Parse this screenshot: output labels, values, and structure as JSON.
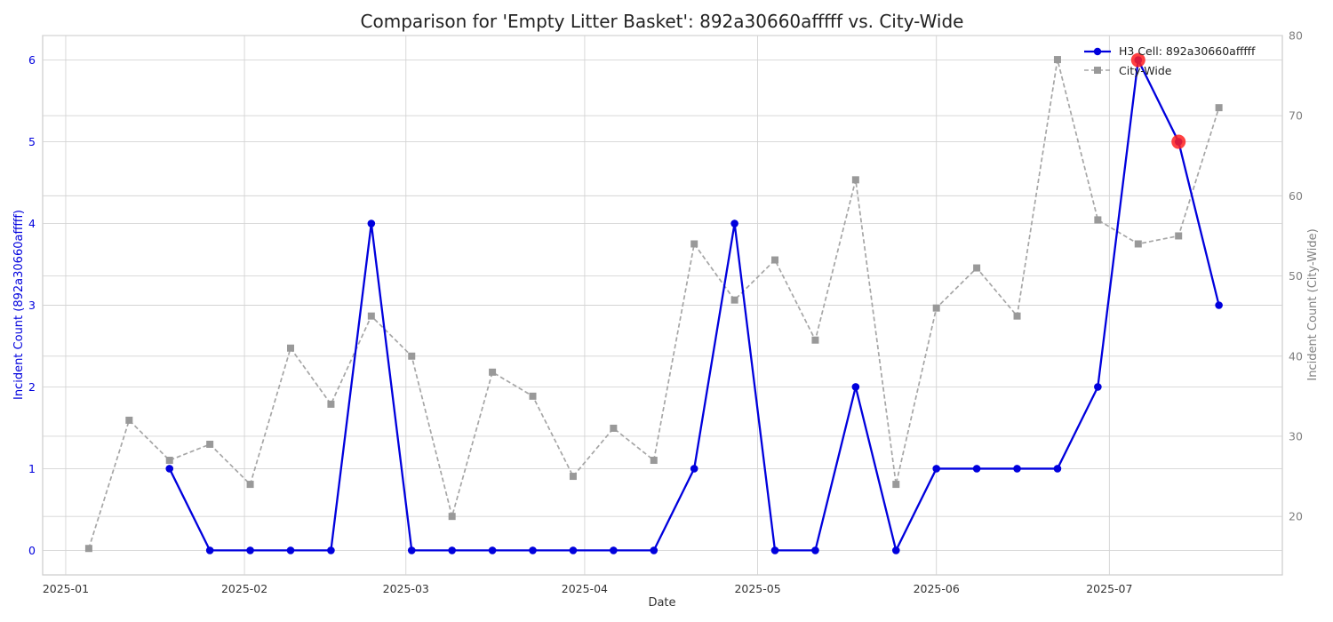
{
  "chart_data": {
    "type": "line",
    "title": "Comparison for 'Empty Litter Basket': 892a30660afffff vs. City-Wide",
    "xlabel": "Date",
    "ylabel_left": "Incident Count (892a30660afffff)",
    "ylabel_right": "Incident Count (City-Wide)",
    "x_ticks": [
      "2025-01",
      "2025-02",
      "2025-03",
      "2025-04",
      "2025-05",
      "2025-06",
      "2025-07"
    ],
    "y_left_ticks": [
      "0",
      "1",
      "2",
      "3",
      "4",
      "5",
      "6"
    ],
    "y_right_ticks": [
      "20",
      "30",
      "40",
      "50",
      "60",
      "70",
      "80"
    ],
    "xlim": [
      "2024-12-28",
      "2025-07-31"
    ],
    "ylim_left": [
      -0.3,
      6.3
    ],
    "ylim_right": [
      12.7,
      80
    ],
    "grid": true,
    "legend_position": "top-right",
    "colors": {
      "cell": "#0000dd",
      "city": "#a6a6a6",
      "highlight": "#ff2020",
      "left_axis_text": "#0000dd",
      "right_axis_text": "#808080"
    },
    "series": [
      {
        "name": "H3 Cell: 892a30660afffff",
        "axis": "left",
        "x": [
          "2025-01-19",
          "2025-01-26",
          "2025-02-02",
          "2025-02-09",
          "2025-02-16",
          "2025-02-23",
          "2025-03-02",
          "2025-03-09",
          "2025-03-16",
          "2025-03-23",
          "2025-03-30",
          "2025-04-06",
          "2025-04-13",
          "2025-04-20",
          "2025-04-27",
          "2025-05-04",
          "2025-05-11",
          "2025-05-18",
          "2025-05-25",
          "2025-06-01",
          "2025-06-08",
          "2025-06-15",
          "2025-06-22",
          "2025-06-29",
          "2025-07-06",
          "2025-07-13",
          "2025-07-20"
        ],
        "values": [
          1,
          0,
          0,
          0,
          0,
          4,
          0,
          0,
          0,
          0,
          0,
          0,
          0,
          1,
          4,
          0,
          0,
          2,
          0,
          1,
          1,
          1,
          1,
          2,
          6,
          5,
          3
        ]
      },
      {
        "name": "City-Wide",
        "axis": "right",
        "x": [
          "2025-01-05",
          "2025-01-12",
          "2025-01-19",
          "2025-01-26",
          "2025-02-02",
          "2025-02-09",
          "2025-02-16",
          "2025-02-23",
          "2025-03-02",
          "2025-03-09",
          "2025-03-16",
          "2025-03-23",
          "2025-03-30",
          "2025-04-06",
          "2025-04-13",
          "2025-04-20",
          "2025-04-27",
          "2025-05-04",
          "2025-05-11",
          "2025-05-18",
          "2025-05-25",
          "2025-06-01",
          "2025-06-08",
          "2025-06-15",
          "2025-06-22",
          "2025-06-29",
          "2025-07-06",
          "2025-07-13",
          "2025-07-20"
        ],
        "values": [
          16,
          32,
          27,
          29,
          24,
          41,
          34,
          45,
          40,
          20,
          38,
          35,
          25,
          31,
          27,
          54,
          47,
          52,
          42,
          62,
          24,
          46,
          51,
          45,
          77,
          57,
          54,
          55,
          71
        ]
      }
    ],
    "highlights": [
      {
        "series": 0,
        "x": "2025-07-06",
        "value": 6
      },
      {
        "series": 0,
        "x": "2025-07-13",
        "value": 5
      }
    ]
  }
}
